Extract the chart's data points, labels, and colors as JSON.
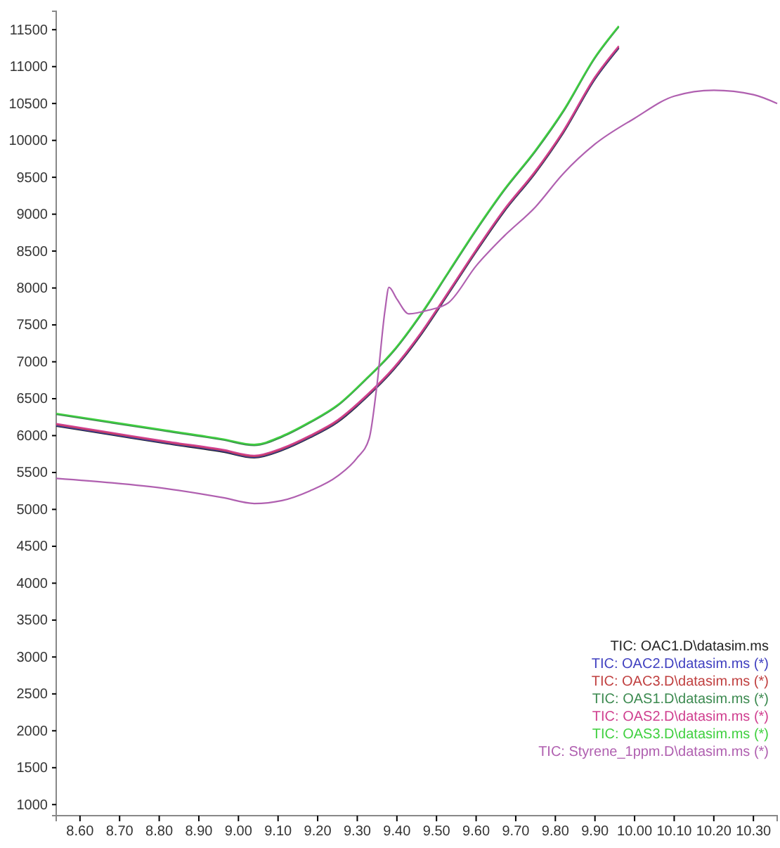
{
  "chart_data": {
    "type": "line",
    "legend": "bottom right",
    "grid": false,
    "line_style": "solid",
    "marker": "none",
    "xlim": [
      8.54,
      10.36
    ],
    "ylim": [
      850,
      11750
    ],
    "xticks": [
      {
        "value": 8.6,
        "label": "8.60"
      },
      {
        "value": 8.7,
        "label": "8.70"
      },
      {
        "value": 8.8,
        "label": "8.80"
      },
      {
        "value": 8.9,
        "label": "8.90"
      },
      {
        "value": 9.0,
        "label": "9.00"
      },
      {
        "value": 9.1,
        "label": "9.10"
      },
      {
        "value": 9.2,
        "label": "9.20"
      },
      {
        "value": 9.3,
        "label": "9.30"
      },
      {
        "value": 9.4,
        "label": "9.40"
      },
      {
        "value": 9.5,
        "label": "9.50"
      },
      {
        "value": 9.6,
        "label": "9.60"
      },
      {
        "value": 9.7,
        "label": "9.70"
      },
      {
        "value": 9.8,
        "label": "9.80"
      },
      {
        "value": 9.9,
        "label": "9.90"
      },
      {
        "value": 10.0,
        "label": "10.00"
      },
      {
        "value": 10.1,
        "label": "10.10"
      },
      {
        "value": 10.2,
        "label": "10.20"
      },
      {
        "value": 10.3,
        "label": "10.30"
      }
    ],
    "yticks": [
      1000,
      1500,
      2000,
      2500,
      3000,
      3500,
      4000,
      4500,
      5000,
      5500,
      6000,
      6500,
      7000,
      7500,
      8000,
      8500,
      9000,
      9500,
      10000,
      10500,
      11000,
      11500
    ],
    "series": [
      {
        "name": "TIC: OAC1.D\\datasim.ms",
        "color": "#222222",
        "x": [
          8.54,
          8.68,
          8.82,
          8.96,
          9.04,
          9.11,
          9.18,
          9.25,
          9.32,
          9.39,
          9.46,
          9.53,
          9.6,
          9.67,
          9.75,
          9.82,
          9.9,
          9.96
        ],
        "values": [
          6130,
          6010,
          5890,
          5780,
          5700,
          5800,
          5970,
          6180,
          6500,
          6880,
          7360,
          7920,
          8490,
          9030,
          9560,
          10100,
          10830,
          11250
        ]
      },
      {
        "name": "TIC: OAC2.D\\datasim.ms (*)",
        "color": "#4040c0",
        "x": [
          8.54,
          8.68,
          8.82,
          8.96,
          9.04,
          9.11,
          9.18,
          9.25,
          9.32,
          9.39,
          9.46,
          9.53,
          9.6,
          9.67,
          9.75,
          9.82,
          9.9,
          9.96
        ],
        "values": [
          6140,
          6020,
          5900,
          5790,
          5710,
          5810,
          5980,
          6190,
          6510,
          6890,
          7370,
          7930,
          8500,
          9040,
          9570,
          10110,
          10840,
          11260
        ]
      },
      {
        "name": "TIC: OAC3.D\\datasim.ms (*)",
        "color": "#c04040",
        "x": [
          8.54,
          8.68,
          8.82,
          8.96,
          9.04,
          9.11,
          9.18,
          9.25,
          9.32,
          9.39,
          9.46,
          9.53,
          9.6,
          9.67,
          9.75,
          9.82,
          9.9,
          9.96
        ],
        "values": [
          6150,
          6030,
          5910,
          5800,
          5720,
          5820,
          5990,
          6200,
          6520,
          6900,
          7380,
          7940,
          8510,
          9050,
          9580,
          10120,
          10850,
          11270
        ]
      },
      {
        "name": "TIC: OAS1.D\\datasim.ms (*)",
        "color": "#3c8a50",
        "x": [
          8.54,
          8.68,
          8.82,
          8.96,
          9.04,
          9.11,
          9.18,
          9.25,
          9.32,
          9.39,
          9.46,
          9.53,
          9.6,
          9.67,
          9.75,
          9.82,
          9.9,
          9.96
        ],
        "values": [
          6288,
          6173,
          6058,
          5943,
          5867,
          5982,
          6173,
          6403,
          6748,
          7131,
          7629,
          8204,
          8779,
          9315,
          9852,
          10388,
          11116,
          11538
        ]
      },
      {
        "name": "TIC: OAS2.D\\datasim.ms (*)",
        "color": "#d04090",
        "x": [
          8.54,
          8.68,
          8.82,
          8.96,
          9.04,
          9.11,
          9.18,
          9.25,
          9.32,
          9.39,
          9.46,
          9.53,
          9.6,
          9.67,
          9.75,
          9.82,
          9.9,
          9.96
        ],
        "values": [
          6160,
          6040,
          5920,
          5810,
          5730,
          5830,
          6000,
          6210,
          6530,
          6910,
          7390,
          7950,
          8520,
          9060,
          9590,
          10130,
          10860,
          11280
        ]
      },
      {
        "name": "TIC: OAS3.D\\datasim.ms (*)",
        "color": "#40d040",
        "x": [
          8.54,
          8.68,
          8.82,
          8.96,
          9.04,
          9.11,
          9.18,
          9.25,
          9.32,
          9.39,
          9.46,
          9.53,
          9.6,
          9.67,
          9.75,
          9.82,
          9.9,
          9.96
        ],
        "values": [
          6300,
          6185,
          6070,
          5955,
          5880,
          5995,
          6185,
          6415,
          6760,
          7145,
          7645,
          8220,
          8795,
          9330,
          9870,
          10405,
          11130,
          11550
        ]
      },
      {
        "name": "TIC: Styrene_1ppm.D\\datasim.ms (*)",
        "color": "#b060b0",
        "x": [
          8.54,
          8.68,
          8.82,
          8.96,
          9.04,
          9.11,
          9.18,
          9.25,
          9.3,
          9.33,
          9.35,
          9.37,
          9.38,
          9.4,
          9.43,
          9.48,
          9.53,
          9.6,
          9.67,
          9.75,
          9.82,
          9.9,
          10.0,
          10.1,
          10.2,
          10.3,
          10.36
        ],
        "values": [
          5420,
          5360,
          5280,
          5160,
          5080,
          5120,
          5250,
          5450,
          5700,
          5960,
          6700,
          7700,
          8010,
          7850,
          7650,
          7700,
          7800,
          8300,
          8700,
          9100,
          9550,
          9950,
          10300,
          10600,
          10680,
          10620,
          10500
        ]
      }
    ]
  }
}
